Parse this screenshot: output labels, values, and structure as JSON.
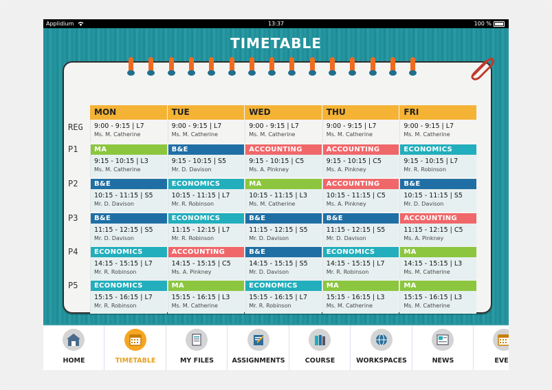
{
  "status_bar": {
    "carrier": "Applidium",
    "time": "13:37",
    "battery": "100 %"
  },
  "title": "TIMETABLE",
  "days": [
    "MON",
    "TUE",
    "WED",
    "THU",
    "FRI"
  ],
  "rows": [
    {
      "label": "REG",
      "cells": [
        {
          "subject": "",
          "time": "9:00 - 9:15 | L7",
          "teacher": "Ms. M. Catherine"
        },
        {
          "subject": "",
          "time": "9:00 - 9:15 | L7",
          "teacher": "Ms. M. Catherine"
        },
        {
          "subject": "",
          "time": "9:00 - 9:15 | L7",
          "teacher": "Ms. M. Catherine"
        },
        {
          "subject": "",
          "time": "9:00 - 9:15 | L7",
          "teacher": "Ms. M. Catherine"
        },
        {
          "subject": "",
          "time": "9:00 - 9:15 | L7",
          "teacher": "Ms. M. Catherine"
        }
      ]
    },
    {
      "label": "P1",
      "cells": [
        {
          "subject": "MA",
          "time": "9:15 - 10:15 | L3",
          "teacher": "Ms. M. Catherine"
        },
        {
          "subject": "B&E",
          "time": "9:15 - 10:15 | S5",
          "teacher": "Mr. D. Davison"
        },
        {
          "subject": "ACCOUNTING",
          "time": "9:15 - 10:15 | C5",
          "teacher": "Ms. A. Pinkney"
        },
        {
          "subject": "ACCOUNTING",
          "time": "9:15 - 10:15 | C5",
          "teacher": "Ms. A. Pinkney"
        },
        {
          "subject": "ECONOMICS",
          "time": "9:15 - 10:15 | L7",
          "teacher": "Mr. R. Robinson"
        }
      ]
    },
    {
      "label": "P2",
      "cells": [
        {
          "subject": "B&E",
          "time": "10:15 - 11:15 | S5",
          "teacher": "Mr. D. Davison"
        },
        {
          "subject": "ECONOMICS",
          "time": "10:15 - 11:15 | L7",
          "teacher": "Mr. R. Robinson"
        },
        {
          "subject": "MA",
          "time": "10:15 - 11:15 | L3",
          "teacher": "Ms. M. Catherine"
        },
        {
          "subject": "ACCOUNTING",
          "time": "10:15 - 11:15 | C5",
          "teacher": "Ms. A. Pinkney"
        },
        {
          "subject": "B&E",
          "time": "10:15 - 11:15 | S5",
          "teacher": "Mr. D. Davison"
        }
      ]
    },
    {
      "label": "P3",
      "cells": [
        {
          "subject": "B&E",
          "time": "11:15 - 12:15 | S5",
          "teacher": "Mr. D. Davison"
        },
        {
          "subject": "ECONOMICS",
          "time": "11:15 - 12:15 | L7",
          "teacher": "Mr. R. Robinson"
        },
        {
          "subject": "B&E",
          "time": "11:15 - 12:15 | S5",
          "teacher": "Mr. D. Davison"
        },
        {
          "subject": "B&E",
          "time": "11:15 - 12:15 | S5",
          "teacher": "Mr. D. Davison"
        },
        {
          "subject": "ACCOUNTING",
          "time": "11:15 - 12:15 | C5",
          "teacher": "Ms. A. Pinkney"
        }
      ]
    },
    {
      "label": "P4",
      "cells": [
        {
          "subject": "ECONOMICS",
          "time": "14:15 - 15:15 | L7",
          "teacher": "Mr. R. Robinson"
        },
        {
          "subject": "ACCOUNTING",
          "time": "14:15 - 15:15 | C5",
          "teacher": "Ms. A. Pinkney"
        },
        {
          "subject": "B&E",
          "time": "14:15 - 15:15 | S5",
          "teacher": "Mr. D. Davison"
        },
        {
          "subject": "ECONOMICS",
          "time": "14:15 - 15:15 | L7",
          "teacher": "Mr. R. Robinson"
        },
        {
          "subject": "MA",
          "time": "14:15 - 15:15 | L3",
          "teacher": "Ms. M. Catherine"
        }
      ]
    },
    {
      "label": "P5",
      "cells": [
        {
          "subject": "ECONOMICS",
          "time": "15:15 - 16:15 | L7",
          "teacher": "Mr. R. Robinson"
        },
        {
          "subject": "MA",
          "time": "15:15 - 16:15 | L3",
          "teacher": "Ms. M. Catherine"
        },
        {
          "subject": "ECONOMICS",
          "time": "15:15 - 16:15 | L7",
          "teacher": "Mr. R. Robinson"
        },
        {
          "subject": "MA",
          "time": "15:15 - 16:15 | L3",
          "teacher": "Ms. M. Catherine"
        },
        {
          "subject": "MA",
          "time": "15:15 - 16:15 | L3",
          "teacher": "Ms. M. Catherine"
        }
      ]
    }
  ],
  "subject_colors": {
    "MA": "#8cc63f",
    "B&E": "#1f6fa5",
    "ACCOUNTING": "#f0676a",
    "ECONOMICS": "#22aebc"
  },
  "tabs": [
    {
      "label": "HOME",
      "icon": "house-icon",
      "active": false
    },
    {
      "label": "TIMETABLE",
      "icon": "calendar-icon",
      "active": true
    },
    {
      "label": "MY FILES",
      "icon": "files-icon",
      "active": false
    },
    {
      "label": "ASSIGNMENTS",
      "icon": "assignment-icon",
      "active": false
    },
    {
      "label": "COURSE",
      "icon": "books-icon",
      "active": false
    },
    {
      "label": "WORKSPACES",
      "icon": "globe-icon",
      "active": false
    },
    {
      "label": "NEWS",
      "icon": "news-icon",
      "active": false
    },
    {
      "label": "EVEN",
      "icon": "calendar-icon",
      "active": false
    }
  ]
}
